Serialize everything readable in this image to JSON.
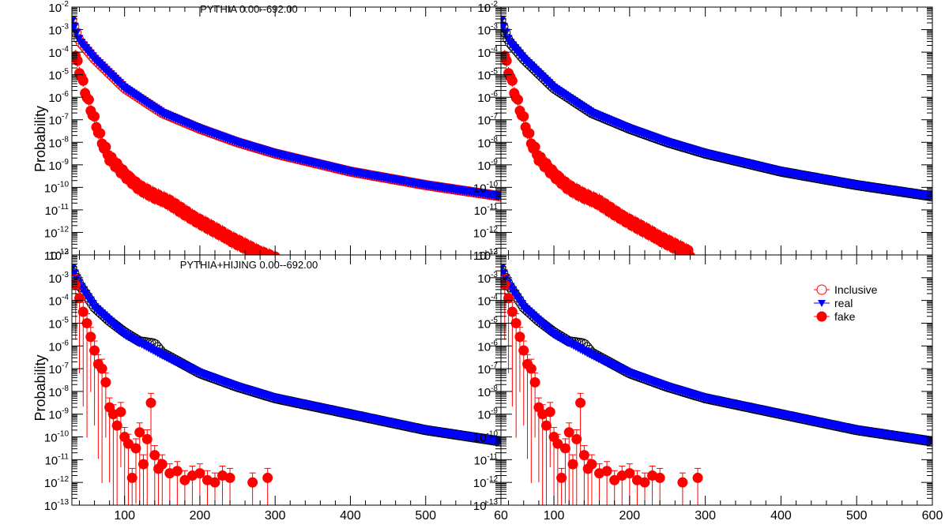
{
  "colors": {
    "inclusive": "#ff0000",
    "real": "#0000ff",
    "fake": "#ff0000",
    "frame": "#000000",
    "inclusive_bottom": "#000000"
  },
  "legend": {
    "items": [
      {
        "label": "Inclusive",
        "marker": "open-circle",
        "color": "#ff0000"
      },
      {
        "label": "real",
        "marker": "down-triangle",
        "color": "#0000ff"
      },
      {
        "label": "fake",
        "marker": "filled-circle",
        "color": "#ff0000"
      }
    ]
  },
  "chart_data": [
    {
      "id": "top-left",
      "type": "scatter",
      "title": "PYTHIA 0.00--692.00",
      "ylabel": "Probability",
      "xlabel": "",
      "xlim": [
        30,
        600
      ],
      "ylim_exp": [
        -13,
        -2
      ],
      "yscale": "log",
      "grid": false,
      "x_ticks": [
        "100",
        "200",
        "300",
        "400",
        "500",
        "6"
      ],
      "series": [
        {
          "name": "Inclusive",
          "marker": "open-circle",
          "color": "#ff0000",
          "x": [
            30,
            40,
            60,
            100,
            150,
            200,
            250,
            300,
            400,
            500,
            600
          ],
          "log10_y": [
            -2.6,
            -3.5,
            -4.3,
            -5.6,
            -6.7,
            -7.4,
            -8.0,
            -8.5,
            -9.3,
            -9.9,
            -10.4
          ]
        },
        {
          "name": "real",
          "marker": "down-triangle",
          "color": "#0000ff",
          "x": [
            30,
            40,
            60,
            100,
            150,
            200,
            250,
            300,
            400,
            500,
            600
          ],
          "log10_y": [
            -2.6,
            -3.5,
            -4.3,
            -5.6,
            -6.7,
            -7.4,
            -8.0,
            -8.5,
            -9.3,
            -9.9,
            -10.4
          ]
        },
        {
          "name": "fake",
          "marker": "filled-circle",
          "color": "#ff0000",
          "x": [
            35,
            40,
            45,
            50,
            55,
            60,
            70,
            80,
            100,
            120,
            140,
            160,
            180,
            200,
            220,
            240,
            260,
            280,
            300
          ],
          "log10_y": [
            -4.2,
            -4.8,
            -5.4,
            -6.0,
            -6.5,
            -7.0,
            -8.0,
            -8.7,
            -9.4,
            -10.0,
            -10.4,
            -10.7,
            -11.1,
            -11.5,
            -11.9,
            -12.3,
            -12.6,
            -12.9,
            -13.2
          ]
        }
      ]
    },
    {
      "id": "top-right",
      "type": "scatter",
      "title": "",
      "ylabel": "",
      "xlabel": "",
      "xlim": [
        30,
        600
      ],
      "ylim_exp": [
        -13,
        -2
      ],
      "yscale": "log",
      "grid": false,
      "x_ticks": [
        "100",
        "200",
        "300",
        "400",
        "500",
        "600"
      ],
      "series": [
        {
          "name": "Inclusive",
          "marker": "open-circle",
          "color": "#000000",
          "x": [
            30,
            40,
            60,
            100,
            150,
            200,
            250,
            300,
            400,
            500,
            600
          ],
          "log10_y": [
            -2.6,
            -3.5,
            -4.3,
            -5.6,
            -6.7,
            -7.4,
            -8.0,
            -8.5,
            -9.3,
            -9.9,
            -10.4
          ]
        },
        {
          "name": "real",
          "marker": "down-triangle",
          "color": "#0000ff",
          "x": [
            30,
            40,
            60,
            100,
            150,
            200,
            250,
            300,
            400,
            500,
            600
          ],
          "log10_y": [
            -2.6,
            -3.5,
            -4.3,
            -5.6,
            -6.7,
            -7.4,
            -8.0,
            -8.5,
            -9.3,
            -9.9,
            -10.4
          ]
        },
        {
          "name": "fake",
          "marker": "filled-circle",
          "color": "#ff0000",
          "x": [
            35,
            40,
            45,
            50,
            55,
            60,
            70,
            80,
            100,
            120,
            140,
            160,
            180,
            200,
            220,
            240,
            260,
            280
          ],
          "log10_y": [
            -4.2,
            -4.8,
            -5.4,
            -6.0,
            -6.5,
            -7.0,
            -8.0,
            -8.7,
            -9.4,
            -10.0,
            -10.4,
            -10.7,
            -11.1,
            -11.5,
            -11.9,
            -12.3,
            -12.6,
            -12.9
          ]
        }
      ]
    },
    {
      "id": "bottom-left",
      "type": "scatter",
      "title": "PYTHIA+HIJING 0.00--692.00",
      "ylabel": "Probability",
      "xlabel": "",
      "xlim": [
        30,
        600
      ],
      "ylim_exp": [
        -13,
        -2
      ],
      "yscale": "log",
      "grid": false,
      "x_ticks": [
        "100",
        "200",
        "300",
        "400",
        "500",
        "60"
      ],
      "series": [
        {
          "name": "Inclusive",
          "marker": "open-circle",
          "color": "#000000",
          "x": [
            30,
            40,
            60,
            80,
            100,
            120,
            140,
            150,
            200,
            250,
            300,
            400,
            500,
            600
          ],
          "log10_y": [
            -2.6,
            -3.3,
            -4.3,
            -4.9,
            -5.4,
            -5.8,
            -5.9,
            -6.3,
            -7.2,
            -7.8,
            -8.3,
            -9.0,
            -9.7,
            -10.2
          ]
        },
        {
          "name": "real",
          "marker": "down-triangle",
          "color": "#0000ff",
          "x": [
            30,
            40,
            60,
            100,
            150,
            200,
            250,
            300,
            400,
            500,
            600
          ],
          "log10_y": [
            -2.6,
            -3.3,
            -4.3,
            -5.5,
            -6.4,
            -7.2,
            -7.8,
            -8.3,
            -9.0,
            -9.7,
            -10.2
          ]
        },
        {
          "name": "fake",
          "marker": "filled-circle",
          "color": "#ff0000",
          "x": [
            35,
            40,
            45,
            50,
            55,
            60,
            65,
            70,
            75,
            80,
            85,
            90,
            95,
            100,
            105,
            110,
            115,
            120,
            125,
            130,
            135,
            140,
            145,
            150,
            160,
            170,
            180,
            190,
            200,
            210,
            220,
            230,
            240,
            270,
            290
          ],
          "log10_y": [
            -3.3,
            -3.9,
            -4.5,
            -5.0,
            -5.6,
            -6.2,
            -6.8,
            -7.0,
            -7.6,
            -8.7,
            -9.0,
            -9.5,
            -8.9,
            -10.0,
            -10.3,
            -11.8,
            -10.5,
            -9.8,
            -11.2,
            -10.1,
            -8.5,
            -10.8,
            -11.4,
            -11.2,
            -11.6,
            -11.5,
            -11.9,
            -11.7,
            -11.6,
            -11.9,
            -12.0,
            -11.7,
            -11.8,
            -12.0,
            -11.8
          ]
        }
      ]
    },
    {
      "id": "bottom-right",
      "type": "scatter",
      "title": "",
      "ylabel": "",
      "xlabel": "",
      "xlim": [
        30,
        600
      ],
      "ylim_exp": [
        -13,
        -2
      ],
      "yscale": "log",
      "grid": false,
      "x_ticks": [
        "100",
        "200",
        "300",
        "400",
        "500",
        "600"
      ],
      "legend": true,
      "legend_position": "top-right",
      "series": [
        {
          "name": "Inclusive",
          "marker": "open-circle",
          "color": "#000000",
          "x": [
            30,
            40,
            60,
            80,
            100,
            120,
            140,
            150,
            200,
            250,
            300,
            400,
            500,
            600
          ],
          "log10_y": [
            -2.6,
            -3.3,
            -4.3,
            -4.9,
            -5.4,
            -5.8,
            -5.9,
            -6.3,
            -7.2,
            -7.8,
            -8.3,
            -9.0,
            -9.7,
            -10.2
          ]
        },
        {
          "name": "real",
          "marker": "down-triangle",
          "color": "#0000ff",
          "x": [
            30,
            40,
            60,
            100,
            150,
            200,
            250,
            300,
            400,
            500,
            600
          ],
          "log10_y": [
            -2.6,
            -3.3,
            -4.3,
            -5.5,
            -6.4,
            -7.2,
            -7.8,
            -8.3,
            -9.0,
            -9.7,
            -10.2
          ]
        },
        {
          "name": "fake",
          "marker": "filled-circle",
          "color": "#ff0000",
          "x": [
            35,
            40,
            45,
            50,
            55,
            60,
            65,
            70,
            75,
            80,
            85,
            90,
            95,
            100,
            105,
            110,
            115,
            120,
            125,
            130,
            135,
            140,
            145,
            150,
            160,
            170,
            180,
            190,
            200,
            210,
            220,
            230,
            240,
            270,
            290
          ],
          "log10_y": [
            -3.3,
            -3.9,
            -4.5,
            -5.0,
            -5.6,
            -6.2,
            -6.8,
            -7.0,
            -7.6,
            -8.7,
            -9.0,
            -9.5,
            -8.9,
            -10.0,
            -10.3,
            -11.8,
            -10.5,
            -9.8,
            -11.2,
            -10.1,
            -8.5,
            -10.8,
            -11.4,
            -11.2,
            -11.6,
            -11.5,
            -11.9,
            -11.7,
            -11.6,
            -11.9,
            -12.0,
            -11.7,
            -11.8,
            -12.0,
            -11.8
          ]
        }
      ]
    }
  ]
}
